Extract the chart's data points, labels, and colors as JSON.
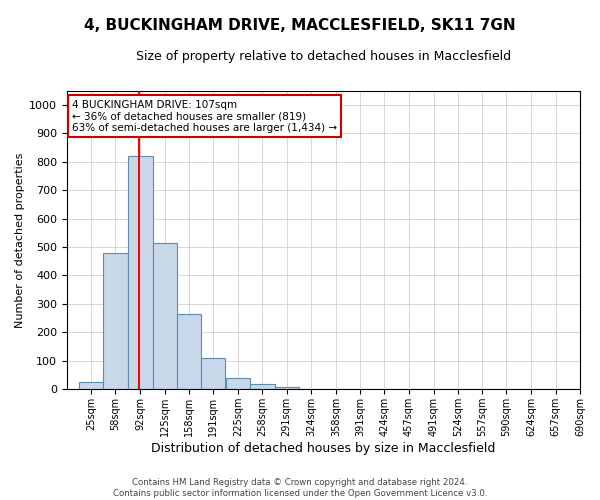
{
  "title": "4, BUCKINGHAM DRIVE, MACCLESFIELD, SK11 7GN",
  "subtitle": "Size of property relative to detached houses in Macclesfield",
  "xlabel": "Distribution of detached houses by size in Macclesfield",
  "ylabel": "Number of detached properties",
  "categories": [
    "25sqm",
    "58sqm",
    "92sqm",
    "125sqm",
    "158sqm",
    "191sqm",
    "225sqm",
    "258sqm",
    "291sqm",
    "324sqm",
    "358sqm",
    "391sqm",
    "424sqm",
    "457sqm",
    "491sqm",
    "524sqm",
    "557sqm",
    "590sqm",
    "624sqm",
    "657sqm",
    "690sqm"
  ],
  "bar_values": [
    25,
    480,
    820,
    515,
    265,
    110,
    38,
    18,
    8,
    0,
    0,
    0,
    0,
    0,
    0,
    0,
    0,
    0,
    0,
    0,
    0
  ],
  "bin_edges": [
    25,
    58,
    92,
    125,
    158,
    191,
    225,
    258,
    291,
    324,
    358,
    391,
    424,
    457,
    491,
    524,
    557,
    590,
    624,
    657,
    690
  ],
  "bar_color": "#c8d8e8",
  "bar_edge_color": "#5a8db0",
  "red_line_x": 107,
  "ylim": [
    0,
    1050
  ],
  "yticks": [
    0,
    100,
    200,
    300,
    400,
    500,
    600,
    700,
    800,
    900,
    1000
  ],
  "annotation_text": "4 BUCKINGHAM DRIVE: 107sqm\n← 36% of detached houses are smaller (819)\n63% of semi-detached houses are larger (1,434) →",
  "annotation_box_color": "#ffffff",
  "annotation_box_edge_color": "#cc0000",
  "footer_text": "Contains HM Land Registry data © Crown copyright and database right 2024.\nContains public sector information licensed under the Open Government Licence v3.0.",
  "background_color": "#ffffff",
  "grid_color": "#d0d0d0",
  "title_fontsize": 11,
  "subtitle_fontsize": 9,
  "ylabel_fontsize": 8,
  "xlabel_fontsize": 9
}
